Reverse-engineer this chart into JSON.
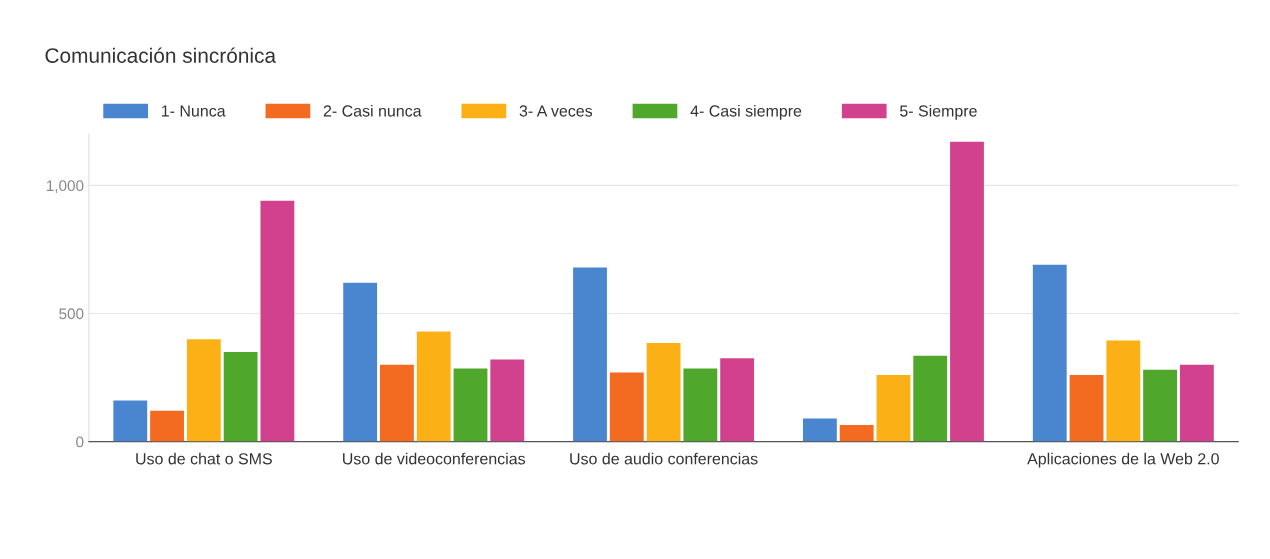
{
  "chart_data": {
    "type": "bar",
    "title": "Comunicación sincrónica",
    "categories": [
      "Uso de chat o SMS",
      "Uso de videoconferencias",
      "Uso de audio conferencias",
      null,
      "Aplicaciones de la Web 2.0"
    ],
    "series": [
      {
        "name": "1- Nunca",
        "color": "#4a86cf",
        "values": [
          160,
          620,
          680,
          90,
          690
        ]
      },
      {
        "name": "2- Casi nunca",
        "color": "#f26b21",
        "values": [
          120,
          300,
          270,
          65,
          260
        ]
      },
      {
        "name": "3- A veces",
        "color": "#fbb116",
        "values": [
          400,
          430,
          385,
          260,
          395
        ]
      },
      {
        "name": "4- Casi siempre",
        "color": "#4fa72b",
        "values": [
          350,
          285,
          285,
          335,
          280
        ]
      },
      {
        "name": "5- Siempre",
        "color": "#d1418e",
        "values": [
          940,
          320,
          325,
          1170,
          300
        ]
      }
    ],
    "ylim": [
      0,
      1200
    ],
    "yticks": [
      0,
      500,
      {
        "value": 1000,
        "label": "1,000"
      }
    ],
    "grid": "y",
    "legend": "top left"
  }
}
